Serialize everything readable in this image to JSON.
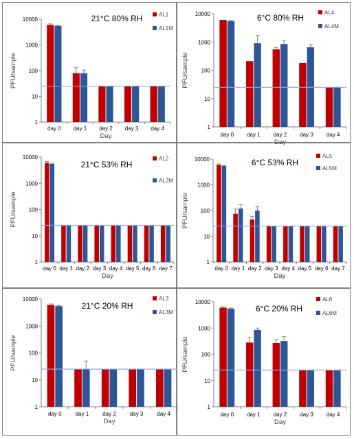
{
  "chart_data": [
    {
      "type": "bar",
      "title": "21°C 80% RH",
      "xlabel": "Day",
      "ylabel": "PFU/sample",
      "yscale": "log",
      "ylim": [
        1,
        10000
      ],
      "y_ticks": [
        "1",
        "10",
        "100",
        "1000",
        "10000"
      ],
      "categories": [
        "day 0",
        "day 1",
        "day 2",
        "day 3",
        "day 4"
      ],
      "series": [
        {
          "name": "AL1",
          "color": "#C00000",
          "values": [
            6000,
            80,
            25,
            25,
            25
          ],
          "errors": [
            600,
            50,
            0,
            0,
            0
          ]
        },
        {
          "name": "AL1M",
          "color": "#2E5597",
          "values": [
            5500,
            80,
            25,
            25,
            25
          ],
          "errors": [
            300,
            25,
            0,
            0,
            0
          ]
        }
      ],
      "reference_line": 25,
      "legend_position": "top-right"
    },
    {
      "type": "bar",
      "title": "6°C 80% RH",
      "xlabel": "Day",
      "ylabel": "PFU/sample",
      "yscale": "log",
      "ylim": [
        1,
        10000
      ],
      "y_ticks": [
        "1",
        "10",
        "100",
        "1000",
        "10000"
      ],
      "categories": [
        "day 0",
        "day 1",
        "day 2",
        "day 3",
        "day 4"
      ],
      "series": [
        {
          "name": "AL4",
          "color": "#C00000",
          "values": [
            6000,
            210,
            550,
            180,
            25
          ],
          "errors": [
            0,
            0,
            80,
            0,
            0
          ]
        },
        {
          "name": "AL4M",
          "color": "#2E5597",
          "values": [
            5500,
            900,
            850,
            650,
            25
          ],
          "errors": [
            300,
            800,
            250,
            150,
            0
          ]
        }
      ],
      "reference_line": 25,
      "legend_position": "top-right"
    },
    {
      "type": "bar",
      "title": "21°C 53% RH",
      "xlabel": "Day",
      "ylabel": "PFU/sample",
      "yscale": "log",
      "ylim": [
        1,
        10000
      ],
      "y_ticks": [
        "1",
        "10",
        "100",
        "1000",
        "10000"
      ],
      "categories": [
        "day 0",
        "day 1",
        "day 2",
        "day 3",
        "day 4",
        "day 5",
        "day 6",
        "day 7"
      ],
      "series": [
        {
          "name": "AL2",
          "color": "#C00000",
          "values": [
            6000,
            25,
            25,
            25,
            25,
            25,
            25,
            25
          ],
          "errors": [
            800,
            0,
            0,
            0,
            0,
            0,
            0,
            0
          ]
        },
        {
          "name": "AL2M",
          "color": "#2E5597",
          "values": [
            5500,
            25,
            25,
            25,
            25,
            25,
            25,
            25
          ],
          "errors": [
            400,
            0,
            0,
            0,
            0,
            0,
            0,
            0
          ]
        }
      ],
      "reference_line": 25,
      "legend_position": "top-right"
    },
    {
      "type": "bar",
      "title": "6°C 53% RH",
      "xlabel": "Day",
      "ylabel": "PFU/sample",
      "yscale": "log",
      "ylim": [
        1,
        10000
      ],
      "y_ticks": [
        "1",
        "10",
        "100",
        "1000",
        "10000"
      ],
      "categories": [
        "day 0",
        "day 1",
        "day 2",
        "day 3",
        "day 4",
        "day 5",
        "day 6",
        "day 7"
      ],
      "series": [
        {
          "name": "AL5",
          "color": "#C00000",
          "values": [
            6000,
            75,
            45,
            25,
            25,
            25,
            25,
            25
          ],
          "errors": [
            500,
            40,
            15,
            0,
            0,
            0,
            0,
            0
          ]
        },
        {
          "name": "AL5M",
          "color": "#2E5597",
          "values": [
            5500,
            120,
            100,
            25,
            25,
            25,
            25,
            25
          ],
          "errors": [
            400,
            50,
            40,
            0,
            0,
            0,
            0,
            0
          ]
        }
      ],
      "reference_line": 25,
      "legend_position": "top-right"
    },
    {
      "type": "bar",
      "title": "21°C 20% RH",
      "xlabel": "Day",
      "ylabel": "PFU/sample",
      "yscale": "log",
      "ylim": [
        1,
        10000
      ],
      "y_ticks": [
        "1",
        "10",
        "100",
        "1000",
        "10000"
      ],
      "categories": [
        "day 0",
        "day 1",
        "day 2",
        "day 3",
        "day 4"
      ],
      "series": [
        {
          "name": "AL3",
          "color": "#C00000",
          "values": [
            6000,
            25,
            25,
            25,
            25
          ],
          "errors": [
            600,
            0,
            0,
            0,
            0
          ]
        },
        {
          "name": "AL3M",
          "color": "#2E5597",
          "values": [
            5500,
            25,
            25,
            25,
            25
          ],
          "errors": [
            300,
            25,
            0,
            0,
            0
          ]
        }
      ],
      "reference_line": 25,
      "legend_position": "top-right"
    },
    {
      "type": "bar",
      "title": "6°C 20% RH",
      "xlabel": "Day",
      "ylabel": "PFU/sample",
      "yscale": "log",
      "ylim": [
        1,
        10000
      ],
      "y_ticks": [
        "1",
        "10",
        "100",
        "1000",
        "10000"
      ],
      "categories": [
        "day 0",
        "day 1",
        "day 2",
        "day 3",
        "day 4"
      ],
      "series": [
        {
          "name": "AL6",
          "color": "#C00000",
          "values": [
            6000,
            280,
            270,
            25,
            25
          ],
          "errors": [
            500,
            150,
            100,
            0,
            0
          ]
        },
        {
          "name": "AL6M",
          "color": "#2E5597",
          "values": [
            5500,
            850,
            320,
            25,
            25
          ],
          "errors": [
            300,
            150,
            150,
            0,
            0
          ]
        }
      ],
      "reference_line": 25,
      "legend_position": "top-right"
    }
  ],
  "style": {
    "reference_line_color": "#8EA9DB",
    "axis_color": "#7f7f7f",
    "error_bar_color": "#7f7f7f"
  }
}
